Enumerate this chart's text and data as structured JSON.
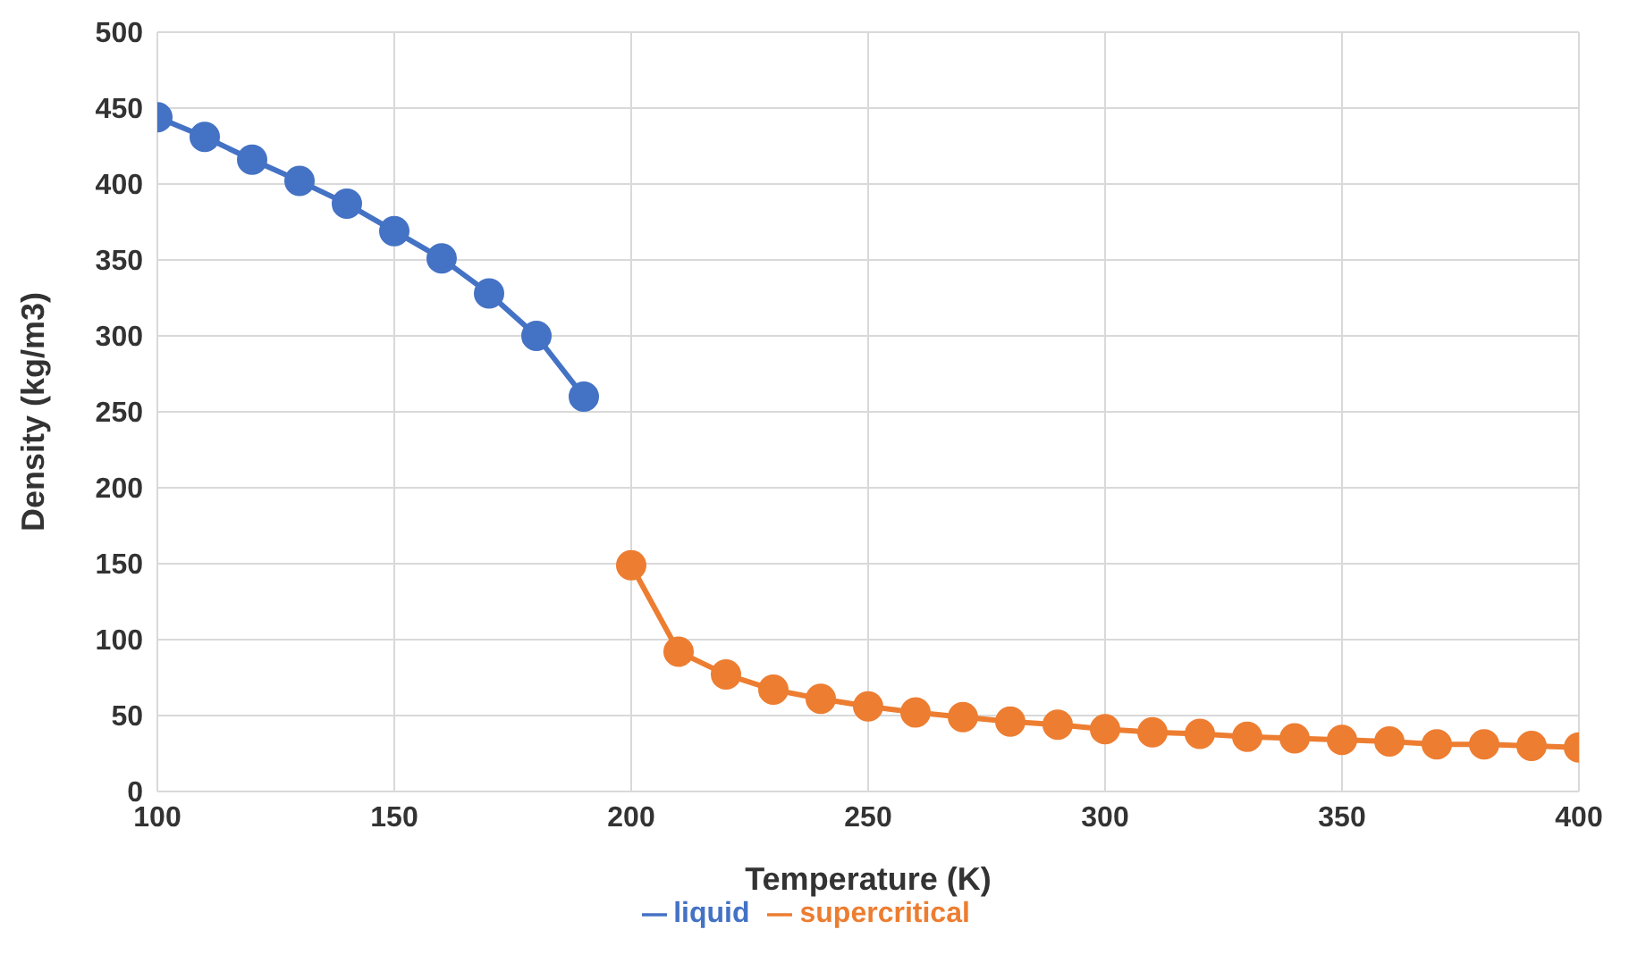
{
  "chart_data": {
    "type": "line",
    "xlabel": "Temperature (K)",
    "ylabel": "Density (kg/m3)",
    "xlim": [
      100,
      400
    ],
    "xticks": [
      100,
      150,
      200,
      250,
      300,
      350,
      400
    ],
    "ylim": [
      0,
      500
    ],
    "yticks": [
      0,
      50,
      100,
      150,
      200,
      250,
      300,
      350,
      400,
      450,
      500
    ],
    "grid": true,
    "legend": "bottom",
    "marker": "circle",
    "line_style": "solid",
    "series": [
      {
        "name": "liquid",
        "color": "#4472c4",
        "x": [
          100,
          110,
          120,
          130,
          140,
          150,
          160,
          170,
          180,
          190
        ],
        "values": [
          444,
          431,
          416,
          402,
          387,
          369,
          351,
          328,
          300,
          260
        ]
      },
      {
        "name": "supercritical",
        "color": "#ed7d31",
        "x": [
          200,
          210,
          220,
          230,
          240,
          250,
          260,
          270,
          280,
          290,
          300,
          310,
          320,
          330,
          340,
          350,
          360,
          370,
          380,
          390,
          400
        ],
        "values": [
          149,
          92,
          77,
          67,
          61,
          56,
          52,
          49,
          46,
          44,
          41,
          39,
          38,
          36,
          35,
          34,
          33,
          31,
          31,
          30,
          29
        ]
      }
    ]
  }
}
